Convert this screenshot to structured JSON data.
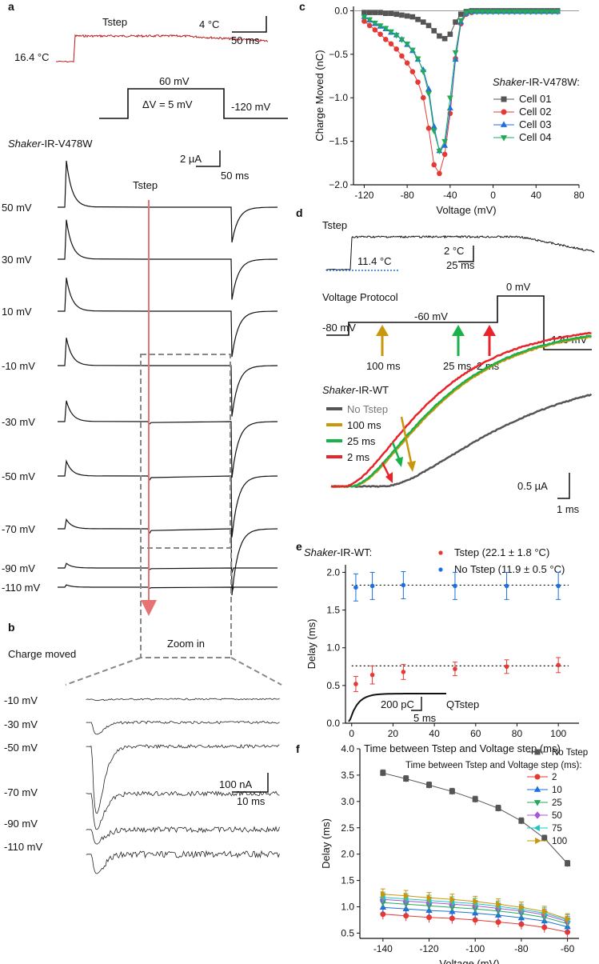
{
  "panel_letters": {
    "a": "a",
    "b": "b",
    "c": "c",
    "d": "d",
    "e": "e",
    "f": "f"
  },
  "colors": {
    "cell01": "#555555",
    "cell02": "#e53935",
    "cell03": "#1e6fe0",
    "cell04": "#22aa5a",
    "tstep_trace": "#b71c1c",
    "no_tstep": "#555555",
    "t100": "#c9960c",
    "t25": "#19b24a",
    "t2": "#e8242a",
    "tstep_pts": "#e53935",
    "notstep_pts": "#1e6fe0"
  },
  "panel_a": {
    "tstep_label": "Tstep",
    "baseline_temp": "16.4 °C",
    "scale_temp": "4 °C",
    "scale_time": "50 ms",
    "step_label": "60 mV",
    "dv_label": "ΔV = 5 mV",
    "hold_label": "-120 mV",
    "construct_italic": "Shaker",
    "construct_rest": "-IR-V478W",
    "scale_current": "2 µA",
    "scale_time2": "50 ms",
    "tstep_arrow_label": "Tstep",
    "traces": [
      {
        "label": "50 mV",
        "amp": 1.0,
        "gate": 0.0
      },
      {
        "label": "30 mV",
        "amp": 0.85,
        "gate": 0.0
      },
      {
        "label": "10 mV",
        "amp": 0.72,
        "gate": 0.0
      },
      {
        "label": "-10 mV",
        "amp": 0.6,
        "gate": 0.0
      },
      {
        "label": "-30 mV",
        "amp": 0.45,
        "gate": 0.3
      },
      {
        "label": "-50 mV",
        "amp": 0.32,
        "gate": 0.5
      },
      {
        "label": "-70 mV",
        "amp": 0.2,
        "gate": 0.55
      },
      {
        "label": "-90 mV",
        "amp": 0.1,
        "gate": 0.2
      },
      {
        "label": "-110 mV",
        "amp": 0.05,
        "gate": 0.15
      }
    ]
  },
  "panel_b": {
    "title": "Charge moved",
    "zoom": "Zoom in",
    "scale_current": "100 nA",
    "scale_time": "10 ms",
    "traces": [
      {
        "label": "-10 mV",
        "depth": 0.05
      },
      {
        "label": "-30 mV",
        "depth": 0.5
      },
      {
        "label": "-50 mV",
        "depth": 2.8
      },
      {
        "label": "-70 mV",
        "depth": 1.5
      },
      {
        "label": "-90 mV",
        "depth": 0.6
      },
      {
        "label": "-110 mV",
        "depth": 0.8
      }
    ]
  },
  "panel_d": {
    "tstep_label": "Tstep",
    "baseline_temp": "11.4 °C",
    "scale_temp": "2 °C",
    "scale_time": "25 ms",
    "protocol_title": "Voltage Protocol",
    "v_hold": "-80 mV",
    "v_mid": "-60 mV",
    "v_step": "0 mV",
    "v_end": "-120 mV",
    "arrow_labels": [
      "100 ms",
      "25 ms",
      "2 ms"
    ],
    "construct_italic": "Shaker",
    "construct_rest": "-IR-WT",
    "legend": [
      "No Tstep",
      "100 ms",
      "25 ms",
      "2 ms"
    ],
    "scale_current": "0.5 µA",
    "scale_time2": "1 ms"
  },
  "chart_data": [
    {
      "panel": "c",
      "type": "line",
      "xlabel": "Voltage (mV)",
      "ylabel": "Charge Moved (nC)",
      "xlim": [
        -130,
        80
      ],
      "ylim": [
        -2.0,
        0.05
      ],
      "xticks": [
        -120,
        -80,
        -40,
        0,
        40,
        80
      ],
      "yticks": [
        0.0,
        -0.5,
        -1.0,
        -1.5,
        -2.0
      ],
      "ytick_labels": [
        "0.0",
        "−0.5",
        "−1.0",
        "−1.5",
        "−2.0"
      ],
      "legend_title_italic": "Shaker",
      "legend_title_rest": "-IR-V478W:",
      "legend_position": "right",
      "series": [
        {
          "name": "Cell 01",
          "marker": "square",
          "x": [
            -120,
            -115,
            -110,
            -105,
            -100,
            -95,
            -90,
            -85,
            -80,
            -75,
            -70,
            -65,
            -60,
            -55,
            -50,
            -45,
            -40,
            -35,
            -30,
            -25,
            -20,
            -15,
            -10,
            -5,
            0,
            5,
            10,
            15,
            20,
            25,
            30,
            35,
            40,
            45,
            50,
            55,
            60
          ],
          "y": [
            -0.02,
            -0.02,
            -0.02,
            -0.02,
            -0.03,
            -0.03,
            -0.04,
            -0.05,
            -0.06,
            -0.07,
            -0.1,
            -0.13,
            -0.17,
            -0.23,
            -0.29,
            -0.32,
            -0.27,
            -0.13,
            -0.04,
            -0.01,
            0.0,
            0.0,
            0.0,
            0.0,
            0.0,
            0.0,
            0.0,
            0.0,
            0.0,
            0.0,
            0.0,
            0.0,
            0.0,
            0.0,
            0.0,
            0.0,
            0.0
          ]
        },
        {
          "name": "Cell 02",
          "marker": "circle",
          "x": [
            -120,
            -115,
            -110,
            -105,
            -100,
            -95,
            -90,
            -85,
            -80,
            -75,
            -70,
            -65,
            -60,
            -55,
            -50,
            -45,
            -40,
            -35,
            -30,
            -25,
            -20,
            -15,
            -10,
            -5,
            0,
            5,
            10,
            15,
            20,
            25,
            30,
            35,
            40,
            45,
            50,
            55,
            60
          ],
          "y": [
            -0.12,
            -0.17,
            -0.22,
            -0.27,
            -0.33,
            -0.38,
            -0.44,
            -0.52,
            -0.6,
            -0.7,
            -0.82,
            -1.0,
            -1.35,
            -1.77,
            -1.87,
            -1.65,
            -1.18,
            -0.55,
            -0.15,
            -0.04,
            -0.02,
            -0.01,
            -0.01,
            -0.01,
            -0.01,
            -0.01,
            -0.01,
            -0.01,
            -0.01,
            -0.01,
            -0.01,
            -0.01,
            -0.01,
            -0.01,
            -0.01,
            -0.01,
            -0.01
          ]
        },
        {
          "name": "Cell 03",
          "marker": "triangle-up",
          "x": [
            -120,
            -115,
            -110,
            -105,
            -100,
            -95,
            -90,
            -85,
            -80,
            -75,
            -70,
            -65,
            -60,
            -55,
            -50,
            -45,
            -40,
            -35,
            -30,
            -25,
            -20,
            -15,
            -10,
            -5,
            0,
            5,
            10,
            15,
            20,
            25,
            30,
            35,
            40,
            45,
            50,
            55,
            60
          ],
          "y": [
            -0.07,
            -0.11,
            -0.15,
            -0.18,
            -0.21,
            -0.25,
            -0.28,
            -0.33,
            -0.39,
            -0.46,
            -0.56,
            -0.68,
            -0.9,
            -1.33,
            -1.61,
            -1.55,
            -1.12,
            -0.56,
            -0.13,
            -0.03,
            -0.01,
            -0.01,
            -0.01,
            -0.01,
            -0.01,
            -0.01,
            -0.01,
            -0.01,
            -0.01,
            -0.01,
            -0.01,
            -0.01,
            -0.01,
            -0.01,
            -0.01,
            -0.01,
            -0.01
          ]
        },
        {
          "name": "Cell 04",
          "marker": "triangle-down",
          "x": [
            -120,
            -115,
            -110,
            -105,
            -100,
            -95,
            -90,
            -85,
            -80,
            -75,
            -70,
            -65,
            -60,
            -55,
            -50,
            -45,
            -40,
            -35,
            -30,
            -25,
            -20,
            -15,
            -10,
            -5,
            0,
            5,
            10,
            15,
            20,
            25,
            30,
            35,
            40,
            45,
            50,
            55,
            60
          ],
          "y": [
            -0.07,
            -0.1,
            -0.14,
            -0.17,
            -0.2,
            -0.24,
            -0.28,
            -0.33,
            -0.38,
            -0.45,
            -0.55,
            -0.7,
            -0.95,
            -1.38,
            -1.61,
            -1.5,
            -1.0,
            -0.48,
            -0.11,
            -0.02,
            -0.01,
            -0.01,
            -0.01,
            -0.01,
            -0.01,
            -0.01,
            -0.01,
            -0.01,
            -0.01,
            -0.01,
            -0.01,
            -0.01,
            -0.01,
            -0.01,
            -0.01,
            -0.01,
            -0.01
          ]
        }
      ]
    },
    {
      "panel": "e",
      "type": "scatter",
      "xlabel": "Time between Tstep and Voltage step (ms)",
      "ylabel": "Delay (ms)",
      "xlim": [
        -3,
        110
      ],
      "ylim": [
        0.0,
        2.1
      ],
      "xticks": [
        0,
        20,
        40,
        60,
        80,
        100
      ],
      "yticks": [
        0.0,
        0.5,
        1.0,
        1.5,
        2.0
      ],
      "ytick_labels": [
        "0.0",
        "0.5",
        "1.0",
        "1.5",
        "2.0"
      ],
      "legend_title_italic": "Shaker",
      "legend_title_rest": "-IR-WT:",
      "inset": {
        "scale_charge": "200 pC",
        "scale_time": "5 ms",
        "label": "QTstep"
      },
      "series": [
        {
          "name": "Tstep (22.1 ± 1.8 °C)",
          "x": [
            2,
            10,
            25,
            50,
            75,
            100
          ],
          "y": [
            0.52,
            0.64,
            0.68,
            0.72,
            0.75,
            0.77
          ],
          "err": [
            0.1,
            0.12,
            0.1,
            0.09,
            0.09,
            0.1
          ],
          "ref": 0.76
        },
        {
          "name": "No Tstep (11.9 ± 0.5 °C)",
          "x": [
            2,
            10,
            25,
            50,
            75,
            100
          ],
          "y": [
            1.8,
            1.82,
            1.83,
            1.82,
            1.82,
            1.82
          ],
          "err": [
            0.18,
            0.18,
            0.18,
            0.18,
            0.18,
            0.18
          ],
          "ref": 1.83
        }
      ]
    },
    {
      "panel": "f",
      "type": "line",
      "xlabel": "Voltage (mV)",
      "ylabel": "Delay (ms)",
      "xlim": [
        -150,
        -55
      ],
      "ylim": [
        0.4,
        4.0
      ],
      "xticks": [
        -140,
        -120,
        -100,
        -80,
        -60
      ],
      "yticks": [
        0.5,
        1.0,
        1.5,
        2.0,
        2.5,
        3.0,
        3.5,
        4.0
      ],
      "ytick_labels": [
        "0.5",
        "1.0",
        "1.5",
        "2.0",
        "2.5",
        "3.0",
        "3.5",
        "4.0"
      ],
      "legend_header": "Time between Tstep and Voltage step (ms):",
      "x": [
        -140,
        -130,
        -120,
        -110,
        -100,
        -90,
        -80,
        -70,
        -60
      ],
      "series": [
        {
          "name": "No Tstep",
          "marker": "square",
          "color": "#555555",
          "y": [
            3.54,
            3.43,
            3.31,
            3.19,
            3.04,
            2.87,
            2.63,
            2.3,
            1.82
          ],
          "err": 0.06
        },
        {
          "name": "2",
          "marker": "circle",
          "color": "#e53935",
          "y": [
            0.86,
            0.83,
            0.8,
            0.78,
            0.75,
            0.71,
            0.67,
            0.61,
            0.52
          ],
          "err": 0.1
        },
        {
          "name": "10",
          "marker": "triangle-up",
          "color": "#1e6fe0",
          "y": [
            0.99,
            0.96,
            0.93,
            0.91,
            0.88,
            0.84,
            0.79,
            0.73,
            0.62
          ],
          "err": 0.1
        },
        {
          "name": "25",
          "marker": "triangle-down",
          "color": "#22aa5a",
          "y": [
            1.08,
            1.05,
            1.02,
            0.99,
            0.96,
            0.92,
            0.87,
            0.8,
            0.68
          ],
          "err": 0.1
        },
        {
          "name": "50",
          "marker": "diamond",
          "color": "#a855d8",
          "y": [
            1.14,
            1.11,
            1.08,
            1.05,
            1.02,
            0.97,
            0.92,
            0.85,
            0.72
          ],
          "err": 0.1
        },
        {
          "name": "75",
          "marker": "triangle-left",
          "color": "#1fc6c6",
          "y": [
            1.18,
            1.15,
            1.12,
            1.09,
            1.06,
            1.01,
            0.95,
            0.88,
            0.75
          ],
          "err": 0.1
        },
        {
          "name": "100",
          "marker": "triangle-right",
          "color": "#c9960c",
          "y": [
            1.24,
            1.21,
            1.17,
            1.14,
            1.1,
            1.05,
            0.99,
            0.91,
            0.77
          ],
          "err": 0.1
        }
      ]
    }
  ]
}
